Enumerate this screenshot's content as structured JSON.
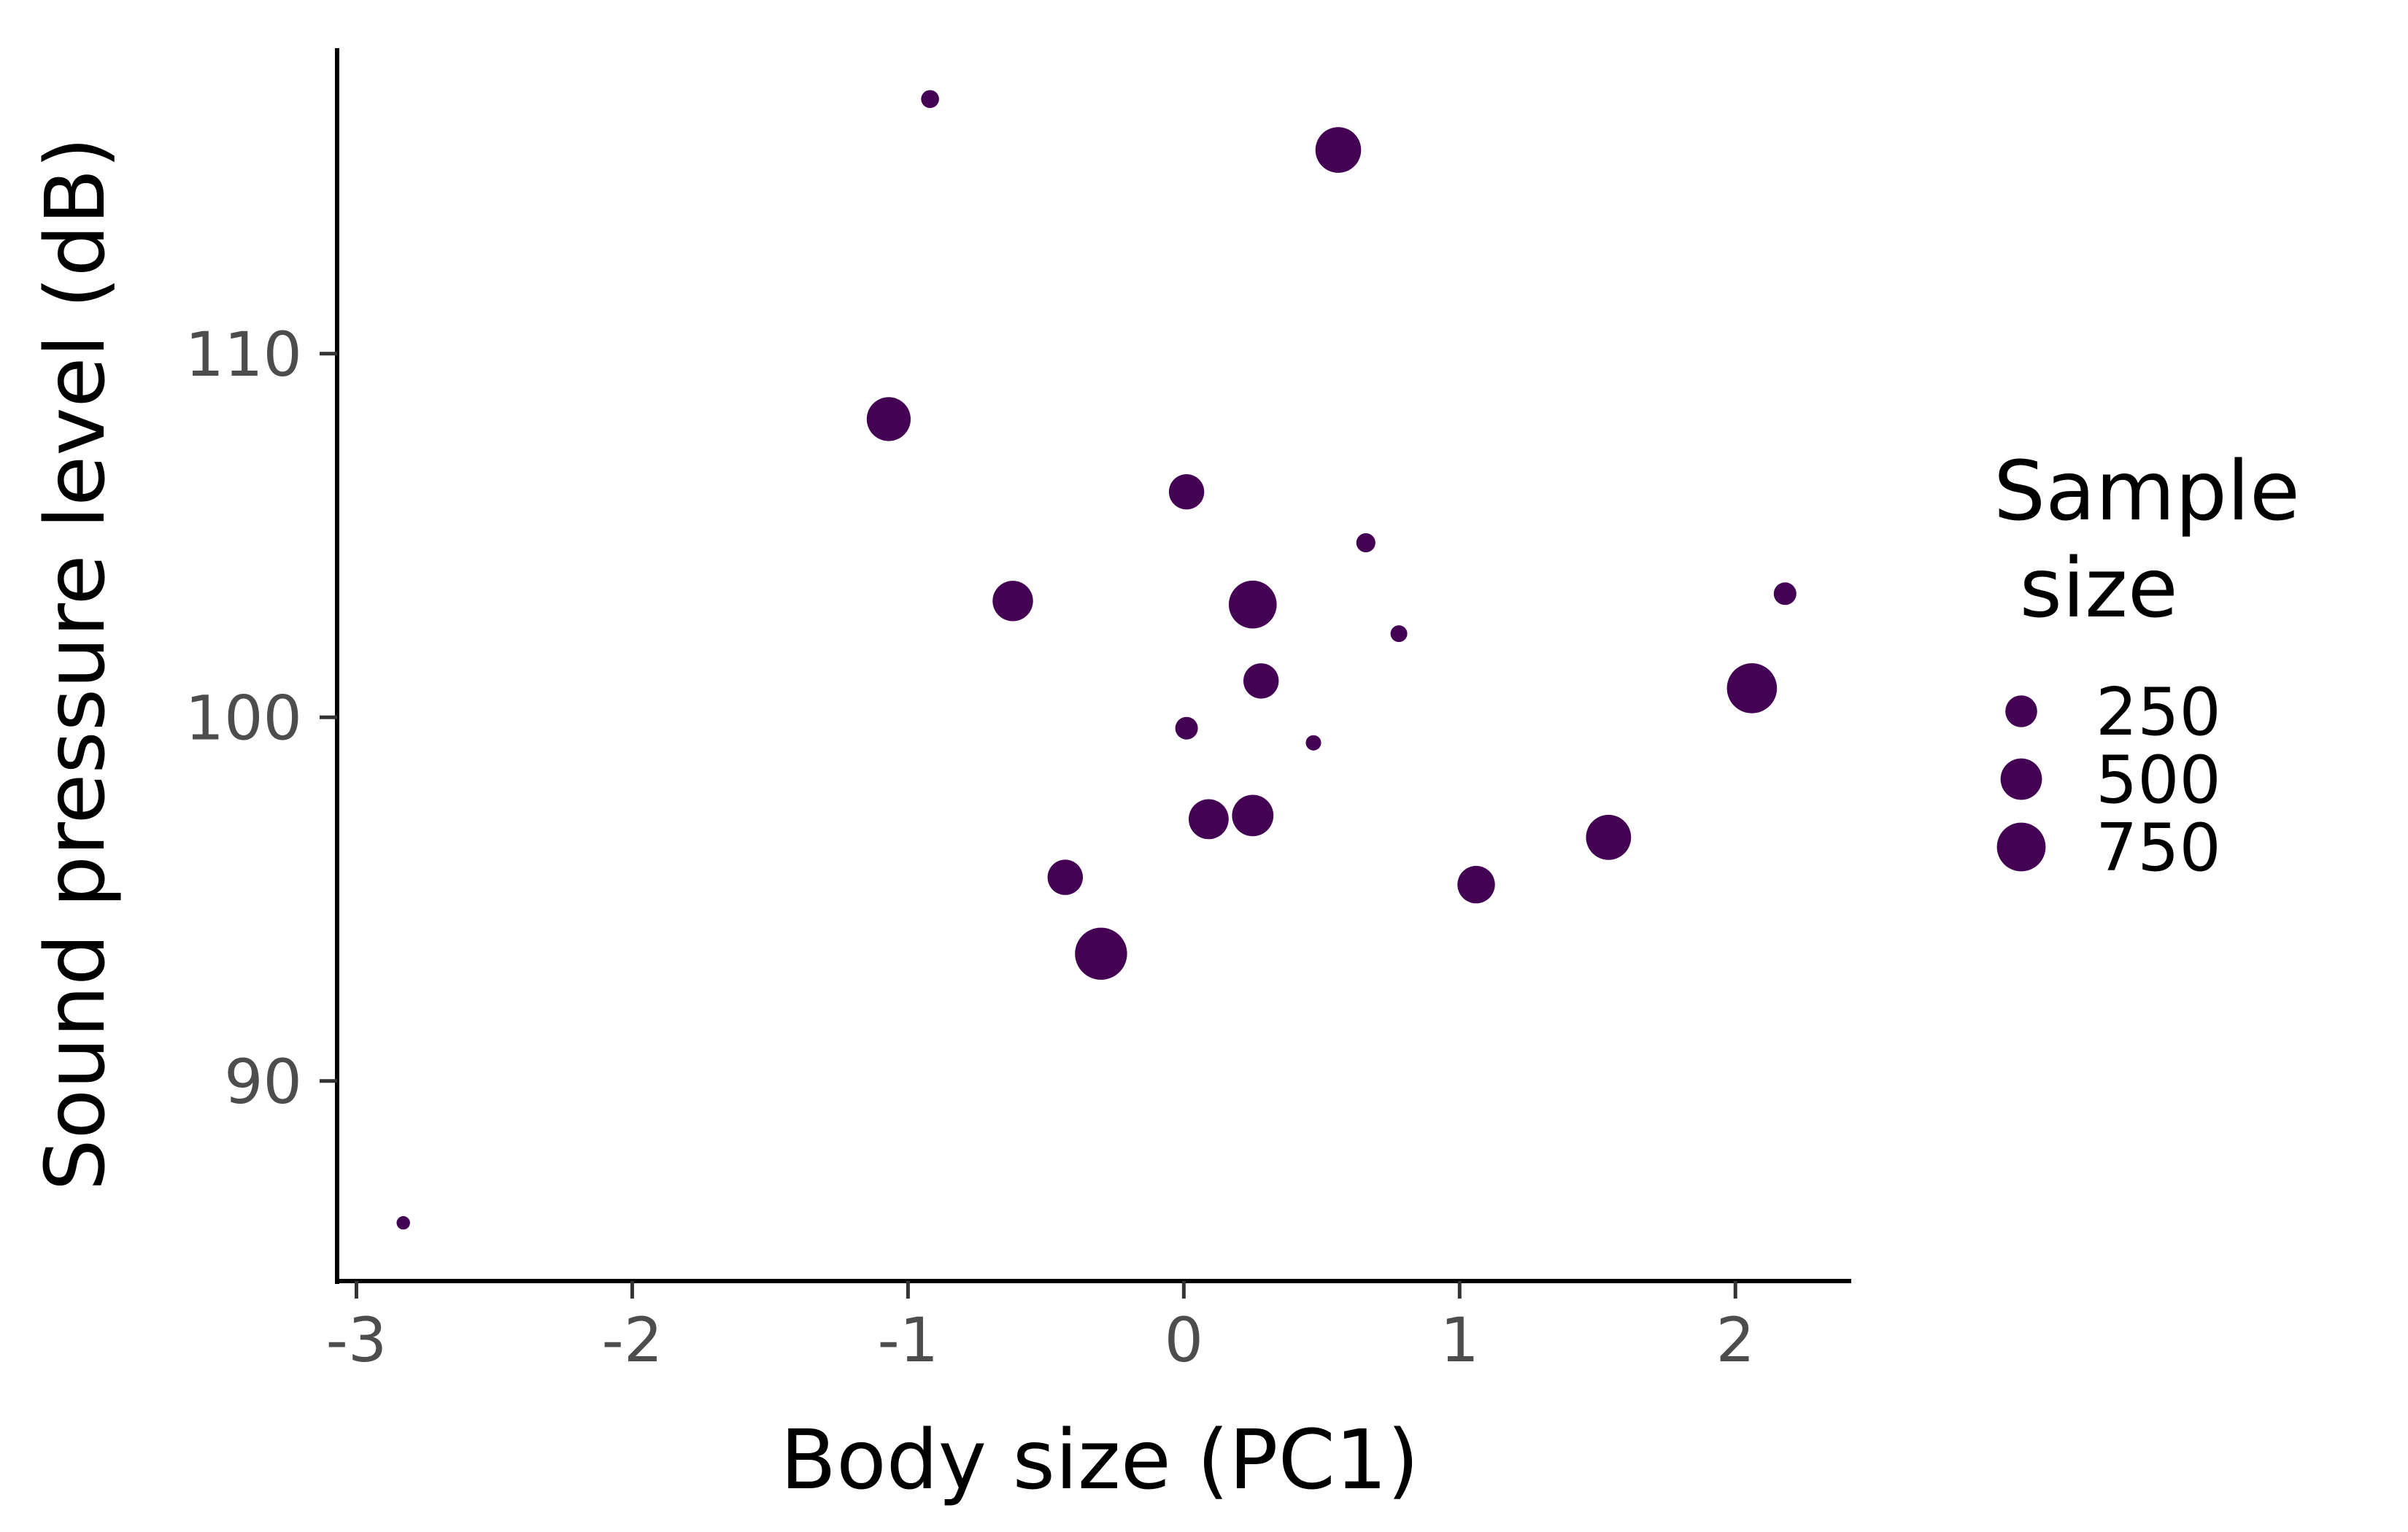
{
  "chart_data": {
    "type": "scatter",
    "xlabel": "Body size (PC1)",
    "ylabel": "Sound pressure level (dB)",
    "xlim": [
      -3.07,
      2.42
    ],
    "ylim": [
      84.5,
      118.4
    ],
    "x_ticks": [
      {
        "value": -3,
        "label": "-3"
      },
      {
        "value": -2,
        "label": "-2"
      },
      {
        "value": -1,
        "label": "-1"
      },
      {
        "value": 0,
        "label": "0"
      },
      {
        "value": 1,
        "label": "1"
      },
      {
        "value": 2,
        "label": "2"
      }
    ],
    "y_ticks": [
      {
        "value": 90,
        "label": "90"
      },
      {
        "value": 100,
        "label": "100"
      },
      {
        "value": 110,
        "label": "110"
      }
    ],
    "grid": false,
    "point_color": "#440154",
    "size_legend": {
      "title_lines": [
        "Sample",
        " size"
      ],
      "placement": "right",
      "entries": [
        {
          "value": 250,
          "label": "250"
        },
        {
          "value": 500,
          "label": "500"
        },
        {
          "value": 750,
          "label": "750"
        }
      ]
    },
    "points": [
      {
        "x": -2.83,
        "y": 86.1,
        "size": 10
      },
      {
        "x": -0.92,
        "y": 117.0,
        "size": 40
      },
      {
        "x": 0.56,
        "y": 115.6,
        "size": 640
      },
      {
        "x": -1.07,
        "y": 108.2,
        "size": 580
      },
      {
        "x": 0.01,
        "y": 106.2,
        "size": 330
      },
      {
        "x": 0.66,
        "y": 104.8,
        "size": 50
      },
      {
        "x": -0.62,
        "y": 103.2,
        "size": 470
      },
      {
        "x": 0.25,
        "y": 103.1,
        "size": 720
      },
      {
        "x": 0.78,
        "y": 102.3,
        "size": 30
      },
      {
        "x": 2.18,
        "y": 103.4,
        "size": 90
      },
      {
        "x": 0.28,
        "y": 101.0,
        "size": 330
      },
      {
        "x": 2.06,
        "y": 100.8,
        "size": 800
      },
      {
        "x": 0.01,
        "y": 99.7,
        "size": 90
      },
      {
        "x": 0.47,
        "y": 99.3,
        "size": 20
      },
      {
        "x": 0.09,
        "y": 97.2,
        "size": 460
      },
      {
        "x": 0.25,
        "y": 97.3,
        "size": 500
      },
      {
        "x": 1.54,
        "y": 96.7,
        "size": 620
      },
      {
        "x": -0.43,
        "y": 95.6,
        "size": 330
      },
      {
        "x": 1.06,
        "y": 95.4,
        "size": 390
      },
      {
        "x": -0.3,
        "y": 93.5,
        "size": 880
      }
    ]
  }
}
